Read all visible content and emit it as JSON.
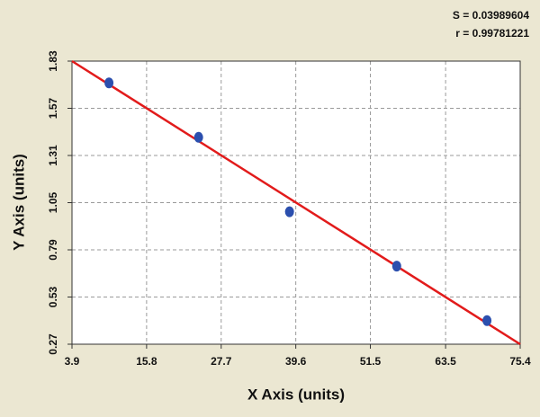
{
  "chart_data": {
    "type": "scatter",
    "annotations": [
      "S = 0.03989604",
      "r = 0.99781221"
    ],
    "x_label": "X Axis (units)",
    "y_label": "Y Axis (units)",
    "x": [
      9.8,
      24.1,
      38.6,
      55.7,
      70.1
    ],
    "y": [
      1.71,
      1.41,
      1.0,
      0.7,
      0.4
    ],
    "color": "#2b4fae",
    "fit_line": {
      "color": "#e21b1b",
      "x": [
        3.9,
        75.4
      ],
      "y": [
        1.83,
        0.27
      ]
    },
    "xlim": [
      3.9,
      75.4
    ],
    "ylim": [
      0.27,
      1.83
    ],
    "xticks": [
      3.9,
      15.8,
      27.7,
      39.6,
      51.5,
      63.5,
      75.4
    ],
    "yticks": [
      0.27,
      0.53,
      0.79,
      1.05,
      1.31,
      1.57,
      1.83
    ],
    "grid": true
  }
}
